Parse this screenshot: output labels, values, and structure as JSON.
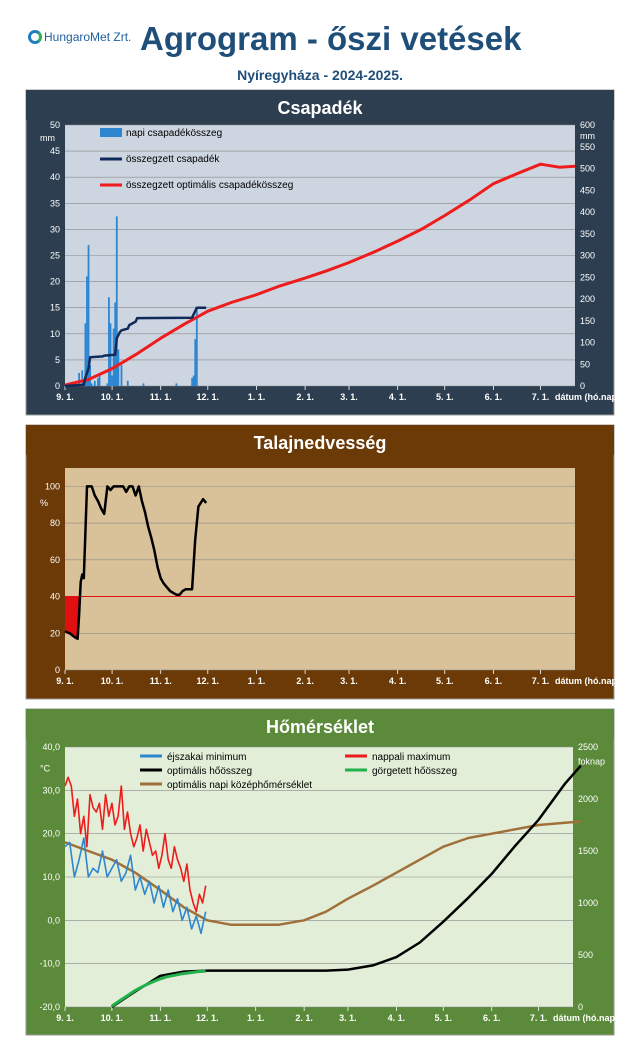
{
  "header": {
    "logo_text": "HungaroMet Zrt.",
    "title": "Agrogram - őszi vetések",
    "subtitle": "Nyíregyháza  - 2024-2025."
  },
  "x_axis": {
    "ticks": [
      "9. 1.",
      "10. 1.",
      "11. 1.",
      "12. 1.",
      "1. 1.",
      "2. 1.",
      "3. 1.",
      "4. 1.",
      "5. 1.",
      "6. 1.",
      "7. 1."
    ],
    "tick_days": [
      0,
      30,
      61,
      91,
      122,
      153,
      181,
      212,
      242,
      273,
      303
    ],
    "label": "dátum (hó.nap)"
  },
  "colors": {
    "panel1_bg": "#2c3e50",
    "panel1_plot": "#cdd5e0",
    "panel2_bg": "#6b3a06",
    "panel2_plot": "#d9c19a",
    "panel3_bg": "#5a8a3a",
    "panel3_plot": "#e3eed8"
  },
  "charts": [
    {
      "chart_data": {
        "type": "bar+line",
        "title": "Csapadék",
        "y_left": {
          "unit": "mm",
          "ylim": [
            0,
            50
          ],
          "ticks": [
            0,
            5,
            10,
            15,
            20,
            25,
            30,
            35,
            40,
            45,
            50
          ]
        },
        "y_right": {
          "unit": "mm",
          "ylim": [
            0,
            600
          ],
          "ticks": [
            0,
            50,
            100,
            150,
            200,
            250,
            300,
            350,
            400,
            450,
            500,
            550,
            600
          ]
        },
        "series": [
          {
            "name": "napi csapadékösszeg",
            "kind": "bar",
            "axis": "left",
            "color": "#2e86d1",
            "x": [
              9,
              11,
              13,
              14,
              15,
              16,
              17,
              19,
              21,
              22,
              27,
              28,
              29,
              30,
              31,
              32,
              33,
              34,
              36,
              40,
              50,
              71,
              81,
              82,
              83,
              84
            ],
            "values": [
              2.5,
              3,
              12,
              21,
              27,
              4,
              0.5,
              1,
              1.5,
              2,
              0.5,
              17,
              12,
              2,
              11,
              16,
              32.5,
              7,
              4,
              1,
              0.5,
              0.5,
              1.5,
              2,
              9,
              15
            ]
          },
          {
            "name": "összegzett csapadék",
            "kind": "line",
            "axis": "right",
            "color": "#0f2b5b",
            "x": [
              0,
              12,
              13,
              15,
              16,
              24,
              25,
              32,
              33,
              35,
              36,
              40,
              41,
              45,
              46,
              81,
              82,
              83,
              84,
              90
            ],
            "values": [
              0,
              3,
              20,
              40,
              66,
              68,
              70,
              72,
              110,
              124,
              128,
              132,
              140,
              148,
              156,
              157,
              165,
              172,
              180,
              180
            ]
          },
          {
            "name": "összegzett optimális csapadékösszeg",
            "kind": "line",
            "axis": "right",
            "color": "#ee1c1c",
            "x": [
              0,
              15,
              30,
              45,
              61,
              76,
              91,
              106,
              122,
              137,
              153,
              167,
              181,
              197,
              212,
              227,
              242,
              258,
              273,
              288,
              303,
              315,
              325
            ],
            "values": [
              2,
              15,
              40,
              72,
              110,
              142,
              172,
              192,
              210,
              230,
              248,
              265,
              284,
              308,
              333,
              360,
              392,
              428,
              465,
              488,
              510,
              503,
              505
            ]
          }
        ],
        "legend": "top-left"
      }
    },
    {
      "chart_data": {
        "type": "line",
        "title": "Talajnedvesség",
        "y_left": {
          "unit": "%",
          "ylim": [
            0,
            110
          ],
          "ticks": [
            0,
            20,
            40,
            60,
            80,
            100
          ]
        },
        "threshold": 40,
        "series": [
          {
            "name": "",
            "kind": "line",
            "color": "#000000",
            "x": [
              0,
              3,
              6,
              8,
              9,
              10,
              11,
              12,
              13,
              14,
              15,
              17,
              19,
              21,
              23,
              25,
              27,
              29,
              31,
              33,
              35,
              37,
              39,
              41,
              43,
              45,
              47,
              49,
              51,
              53,
              55,
              57,
              59,
              61,
              63,
              65,
              67,
              69,
              71,
              73,
              75,
              77,
              79,
              81,
              83,
              85,
              88,
              90
            ],
            "values": [
              21,
              20,
              18,
              17,
              30,
              48,
              52,
              50,
              75,
              100,
              100,
              100,
              95,
              92,
              88,
              85,
              100,
              98,
              100,
              100,
              100,
              100,
              97,
              100,
              100,
              95,
              100,
              92,
              86,
              78,
              72,
              65,
              56,
              50,
              47,
              45,
              43,
              42,
              41,
              41,
              43,
              44,
              44,
              44,
              71,
              89,
              93,
              91
            ]
          }
        ]
      }
    },
    {
      "chart_data": {
        "type": "line",
        "title": "Hőmérséklet",
        "y_left": {
          "unit": "°C",
          "ylim": [
            -20,
            40
          ],
          "ticks": [
            "40,0",
            "30,0",
            "20,0",
            "10,0",
            "0,0",
            "-10,0",
            "-20,0"
          ],
          "tick_values": [
            40,
            30,
            20,
            10,
            0,
            -10,
            -20
          ]
        },
        "y_right": {
          "unit": "foknap",
          "ylim": [
            0,
            2500
          ],
          "ticks": [
            0,
            500,
            1000,
            1500,
            2000,
            2500
          ]
        },
        "series": [
          {
            "name": "éjszakai minimum",
            "kind": "line",
            "axis": "left",
            "color": "#2e86d1",
            "x": [
              0,
              3,
              6,
              9,
              12,
              15,
              18,
              21,
              24,
              27,
              30,
              33,
              36,
              39,
              42,
              45,
              48,
              51,
              54,
              57,
              60,
              63,
              66,
              69,
              72,
              75,
              78,
              81,
              84,
              87,
              90
            ],
            "values": [
              17,
              18,
              10,
              14,
              19,
              10,
              12,
              11,
              16,
              10,
              12,
              14,
              9,
              11,
              15,
              7,
              10,
              6,
              9,
              4,
              8,
              3,
              7,
              2,
              5,
              0,
              3,
              -2,
              1,
              -3,
              2
            ]
          },
          {
            "name": "nappali maximum",
            "kind": "line",
            "axis": "left",
            "color": "#ee1c1c",
            "x": [
              0,
              2,
              4,
              6,
              8,
              10,
              12,
              14,
              16,
              18,
              20,
              22,
              24,
              26,
              28,
              30,
              32,
              34,
              36,
              38,
              40,
              42,
              44,
              46,
              48,
              50,
              52,
              54,
              56,
              58,
              60,
              62,
              64,
              66,
              68,
              70,
              72,
              74,
              76,
              78,
              80,
              82,
              84,
              86,
              88,
              90
            ],
            "values": [
              31,
              33,
              31,
              24,
              28,
              20,
              24,
              17,
              29,
              26,
              25,
              27,
              21,
              29,
              24,
              27,
              22,
              24,
              31,
              21,
              25,
              20,
              17,
              19,
              22,
              16,
              21,
              18,
              15,
              16,
              12,
              15,
              20,
              14,
              12,
              17,
              14,
              12,
              9,
              13,
              7,
              4,
              2,
              6,
              4,
              8
            ]
          },
          {
            "name": "optimális hőösszeg",
            "kind": "line",
            "axis": "right",
            "color": "#000000",
            "x": [
              30,
              45,
              61,
              76,
              91,
              106,
              122,
              137,
              153,
              167,
              181,
              197,
              212,
              227,
              242,
              258,
              273,
              288,
              303,
              320,
              330
            ],
            "values": [
              0,
              150,
              300,
              340,
              350,
              350,
              350,
              350,
              350,
              350,
              360,
              400,
              480,
              620,
              820,
              1050,
              1280,
              1550,
              1800,
              2150,
              2320
            ]
          },
          {
            "name": "görgetett hőösszeg",
            "kind": "line",
            "axis": "right",
            "color": "#22b04a",
            "x": [
              30,
              35,
              40,
              45,
              50,
              55,
              60,
              65,
              70,
              75,
              80,
              85,
              90
            ],
            "values": [
              10,
              60,
              110,
              160,
              200,
              235,
              265,
              290,
              305,
              320,
              330,
              340,
              345
            ]
          },
          {
            "name": "optimális napi középhőmérséklet",
            "kind": "line",
            "axis": "left",
            "color": "#a0703a",
            "x": [
              0,
              15,
              30,
              45,
              61,
              76,
              91,
              106,
              122,
              137,
              153,
              167,
              181,
              197,
              212,
              227,
              242,
              258,
              273,
              288,
              303,
              320,
              330
            ],
            "values": [
              18,
              16,
              14,
              11,
              7,
              3,
              0,
              -1,
              -1,
              -1,
              0,
              2,
              5,
              8,
              11,
              14,
              17,
              19,
              20,
              21,
              22,
              22.5,
              22.8
            ]
          }
        ],
        "legend": "top"
      }
    }
  ]
}
